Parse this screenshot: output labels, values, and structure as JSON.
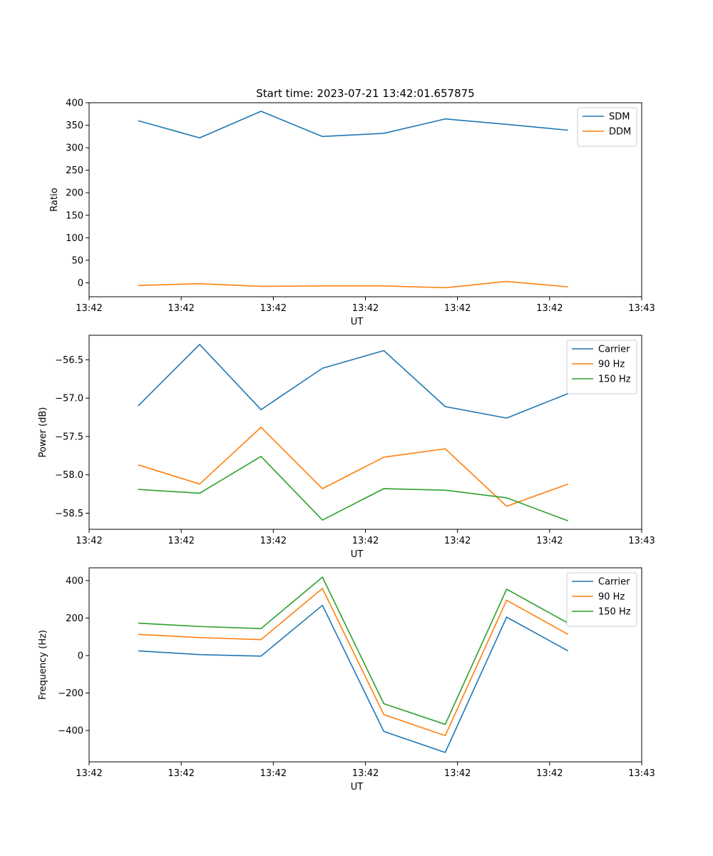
{
  "figure_title": "Start time: 2023-07-21 13:42:01.657875",
  "colors": {
    "blue": "#1f77b4",
    "orange": "#ff7f0e",
    "green": "#2ca02c"
  },
  "chart_data": [
    {
      "type": "line",
      "title": "Start time: 2023-07-21 13:42:01.657875",
      "xlabel": "UT",
      "ylabel": "Ratio",
      "x": [
        1,
        2,
        3,
        4,
        5,
        6,
        7,
        8
      ],
      "xlim": [
        0.2,
        9.2
      ],
      "x_ticks": [
        0.2,
        1.7,
        3.2,
        4.7,
        6.2,
        7.7,
        9.2
      ],
      "x_tick_labels": [
        "13:42",
        "13:42",
        "13:42",
        "13:42",
        "13:42",
        "13:42",
        "13:43"
      ],
      "ylim": [
        -31,
        400
      ],
      "y_ticks": [
        0,
        50,
        100,
        150,
        200,
        250,
        300,
        350,
        400
      ],
      "y_tick_labels": [
        "0",
        "50",
        "100",
        "150",
        "200",
        "250",
        "300",
        "350",
        "400"
      ],
      "legend_position": "top-right",
      "series": [
        {
          "name": "SDM",
          "color": "#1f77b4",
          "values": [
            360,
            322,
            381,
            325,
            332,
            364,
            352,
            339
          ]
        },
        {
          "name": "DDM",
          "color": "#ff7f0e",
          "values": [
            -6,
            -2,
            -8,
            -7,
            -7,
            -11,
            3,
            -9
          ]
        }
      ]
    },
    {
      "type": "line",
      "xlabel": "UT",
      "ylabel": "Power (dB)",
      "x": [
        1,
        2,
        3,
        4,
        5,
        6,
        7,
        8
      ],
      "xlim": [
        0.2,
        9.2
      ],
      "x_ticks": [
        0.2,
        1.7,
        3.2,
        4.7,
        6.2,
        7.7,
        9.2
      ],
      "x_tick_labels": [
        "13:42",
        "13:42",
        "13:42",
        "13:42",
        "13:42",
        "13:42",
        "13:43"
      ],
      "ylim": [
        -58.71,
        -56.18
      ],
      "y_ticks": [
        -58.5,
        -58.0,
        -57.5,
        -57.0,
        -56.5
      ],
      "y_tick_labels": [
        "−58.5",
        "−58.0",
        "−57.5",
        "−57.0",
        "−56.5"
      ],
      "legend_position": "top-right",
      "series": [
        {
          "name": "Carrier",
          "color": "#1f77b4",
          "values": [
            -57.1,
            -56.3,
            -57.15,
            -56.61,
            -56.38,
            -57.11,
            -57.26,
            -56.94
          ]
        },
        {
          "name": "90 Hz",
          "color": "#ff7f0e",
          "values": [
            -57.87,
            -58.12,
            -57.38,
            -58.18,
            -57.77,
            -57.66,
            -58.41,
            -58.12
          ]
        },
        {
          "name": "150 Hz",
          "color": "#2ca02c",
          "values": [
            -58.19,
            -58.24,
            -57.76,
            -58.59,
            -58.18,
            -58.2,
            -58.3,
            -58.6
          ]
        }
      ]
    },
    {
      "type": "line",
      "xlabel": "UT",
      "ylabel": "Frequency (Hz)",
      "x": [
        1,
        2,
        3,
        4,
        5,
        6,
        7,
        8
      ],
      "xlim": [
        0.2,
        9.2
      ],
      "x_ticks": [
        0.2,
        1.7,
        3.2,
        4.7,
        6.2,
        7.7,
        9.2
      ],
      "x_tick_labels": [
        "13:42",
        "13:42",
        "13:42",
        "13:42",
        "13:42",
        "13:42",
        "13:43"
      ],
      "ylim": [
        -567,
        468
      ],
      "y_ticks": [
        -400,
        -200,
        0,
        200,
        400
      ],
      "y_tick_labels": [
        "−400",
        "−200",
        "0",
        "200",
        "400"
      ],
      "legend_position": "top-right",
      "series": [
        {
          "name": "Carrier",
          "color": "#1f77b4",
          "values": [
            25,
            5,
            -3,
            268,
            -405,
            -517,
            205,
            25
          ]
        },
        {
          "name": "90 Hz",
          "color": "#ff7f0e",
          "values": [
            113,
            96,
            85,
            358,
            -315,
            -427,
            295,
            113
          ]
        },
        {
          "name": "150 Hz",
          "color": "#2ca02c",
          "values": [
            173,
            155,
            144,
            418,
            -257,
            -367,
            354,
            173
          ]
        }
      ]
    }
  ]
}
